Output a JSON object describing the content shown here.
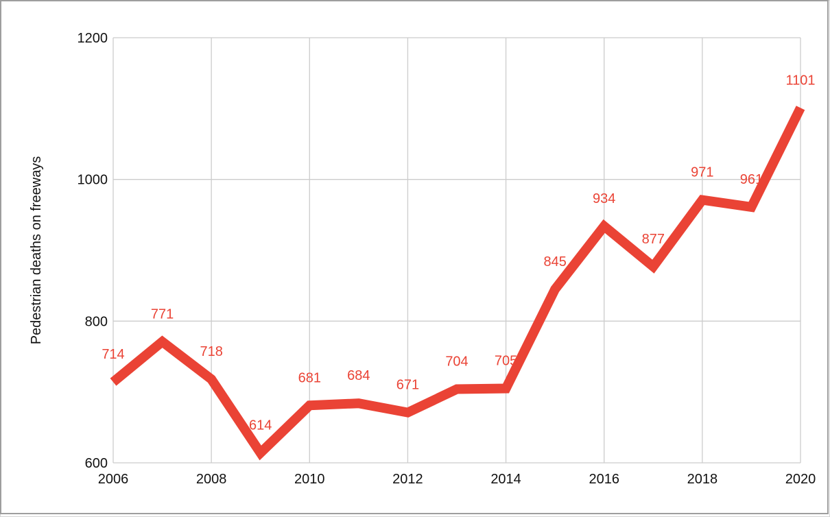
{
  "chart_data": {
    "type": "line",
    "x": [
      2006,
      2007,
      2008,
      2009,
      2010,
      2011,
      2012,
      2013,
      2014,
      2015,
      2016,
      2017,
      2018,
      2019,
      2020
    ],
    "series": [
      {
        "values": [
          714,
          771,
          718,
          614,
          681,
          684,
          671,
          704,
          705,
          845,
          934,
          877,
          971,
          961,
          1101
        ]
      }
    ],
    "data_labels": [
      "714",
      "771",
      "718",
      "614",
      "681",
      "684",
      "671",
      "704",
      "705",
      "845",
      "934",
      "877",
      "971",
      "961",
      "1101"
    ],
    "xlabel": "",
    "ylabel": "Pedestrian deaths on freeways",
    "xlim": [
      2006,
      2020
    ],
    "ylim": [
      600,
      1200
    ],
    "x_ticks": [
      "2006",
      "2008",
      "2010",
      "2012",
      "2014",
      "2016",
      "2018",
      "2020"
    ],
    "y_ticks": [
      "600",
      "800",
      "1000",
      "1200"
    ],
    "grid": true,
    "legend": "none",
    "line_color": "#ea4335",
    "label_color": "#ea4335",
    "grid_color": "#cccccc"
  }
}
